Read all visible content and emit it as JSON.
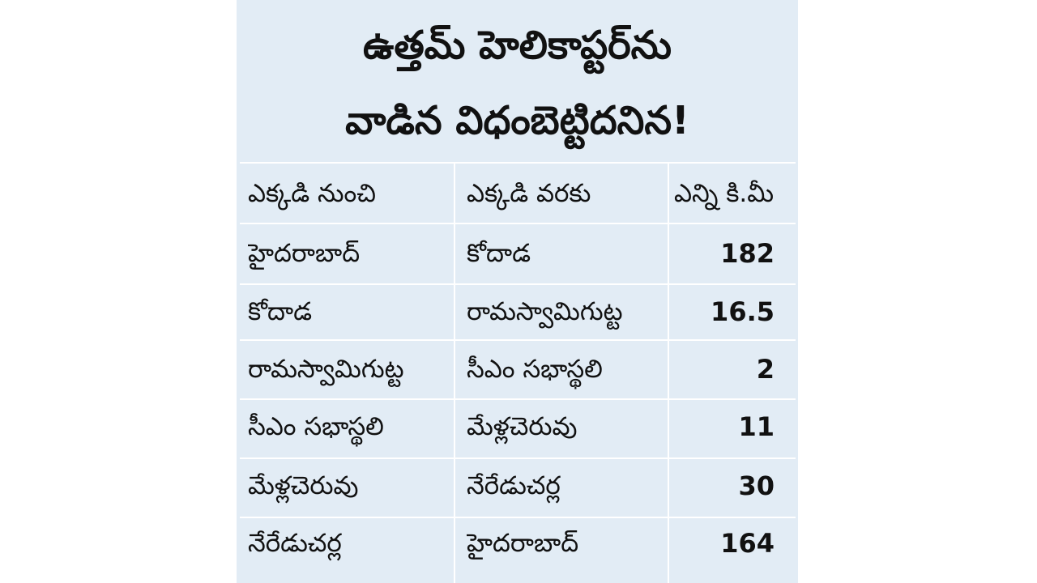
{
  "title": {
    "line1": "ఉత్తమ్ హెలికాప్టర్‌ను",
    "line2": "వాడిన విధంబెట్టిదనిన!"
  },
  "table": {
    "columns": [
      "ఎక్కడి నుంచి",
      "ఎక్కడి వరకు",
      "ఎన్ని కి.మీ"
    ],
    "rows": [
      [
        "హైదరాబాద్",
        "కోదాడ",
        "182"
      ],
      [
        "కోదాడ",
        "రామస్వామిగుట్ట",
        "16.5"
      ],
      [
        "రామస్వామిగుట్ట",
        "సీఎం సభాస్థలి",
        "2"
      ],
      [
        "సీఎం సభాస్థలి",
        "మేళ్లచెరువు",
        "11"
      ],
      [
        "మేళ్లచెరువు",
        "నేరేడుచర్ల",
        "30"
      ],
      [
        "నేరేడుచర్ల",
        "హైదరాబాద్",
        "164"
      ]
    ]
  },
  "colors": {
    "card_background": "#e2ecf5",
    "grid_lines": "#ffffff",
    "text": "#111111"
  }
}
